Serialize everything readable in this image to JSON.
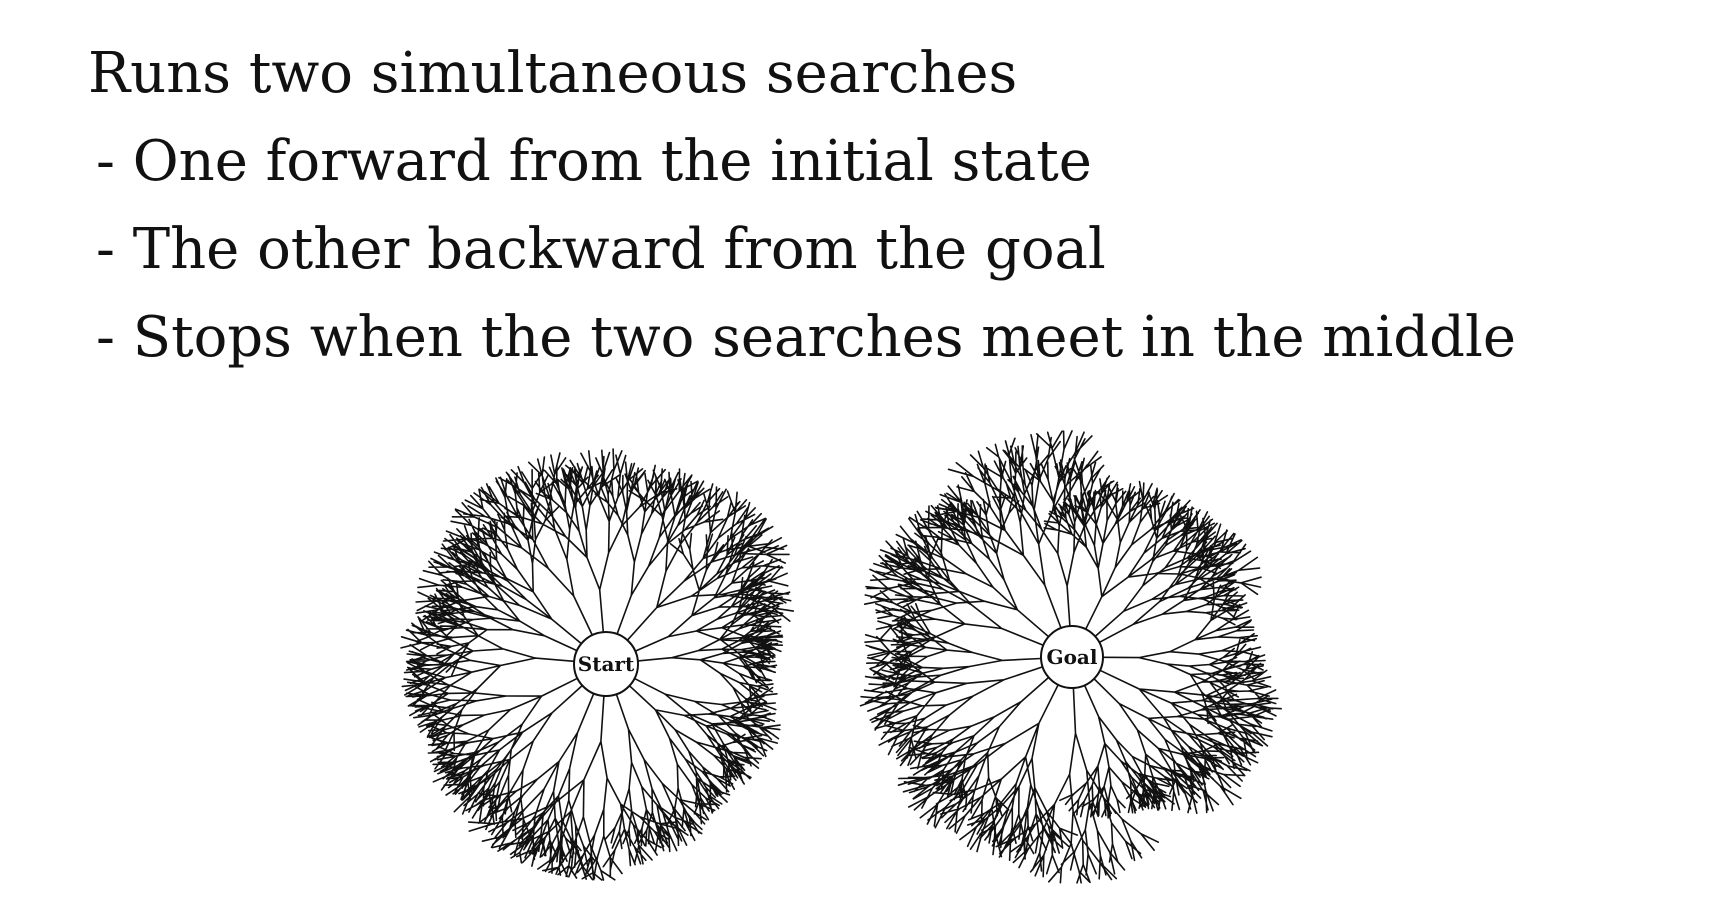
{
  "heading": "Runs two simultaneous searches",
  "bullets": [
    "- One forward from the initial state",
    "- The other backward from the goal",
    "- Stops when the two searches meet in the middle"
  ],
  "diagram": {
    "start_label": "Start",
    "goal_label": "Goal"
  }
}
